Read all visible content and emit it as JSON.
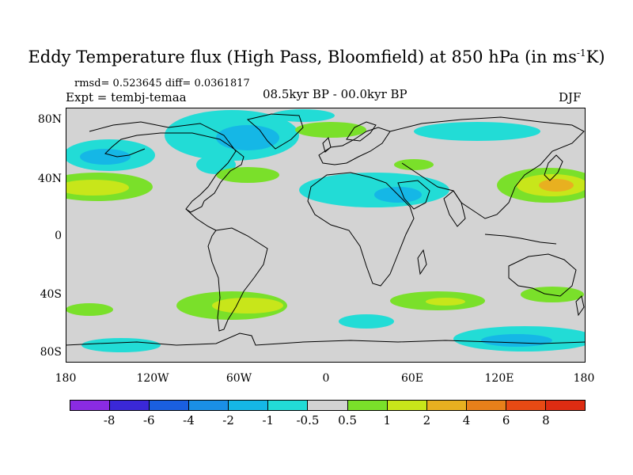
{
  "title_main": "Eddy Temperature flux (High Pass, Bloomfield) at 850 hPa (in ms",
  "title_sup": "-1",
  "title_tail": "K)",
  "stats": "rmsd= 0.523645 diff= 0.0361817",
  "expt": "Expt = tembj-temaa",
  "period": "08.5kyr BP - 00.0kyr BP",
  "season": "DJF",
  "lat_labels": [
    "80N",
    "40N",
    "0",
    "40S",
    "80S"
  ],
  "lon_labels": [
    "180",
    "120W",
    "60W",
    "0",
    "60E",
    "120E",
    "180"
  ],
  "colorbar": {
    "labels": [
      "-8",
      "-6",
      "-4",
      "-2",
      "-1",
      "-0.5",
      "0.5",
      "1",
      "2",
      "4",
      "6",
      "8"
    ],
    "colors": [
      "#8a2be2",
      "#3a28d8",
      "#1a5fe0",
      "#1a8fe6",
      "#15b7e6",
      "#22dcd6",
      "#d3d3d3",
      "#7ae02a",
      "#c8e61a",
      "#e8b020",
      "#e8801a",
      "#e84a14",
      "#dd2c12"
    ]
  },
  "map_colors": {
    "ocean": "#d3d3d3",
    "coast": "#000000",
    "neg_1": "#22dcd6",
    "neg_2": "#15b7e6",
    "pos_1": "#7ae02a",
    "pos_2": "#c8e61a",
    "pos_3": "#e8b020"
  }
}
